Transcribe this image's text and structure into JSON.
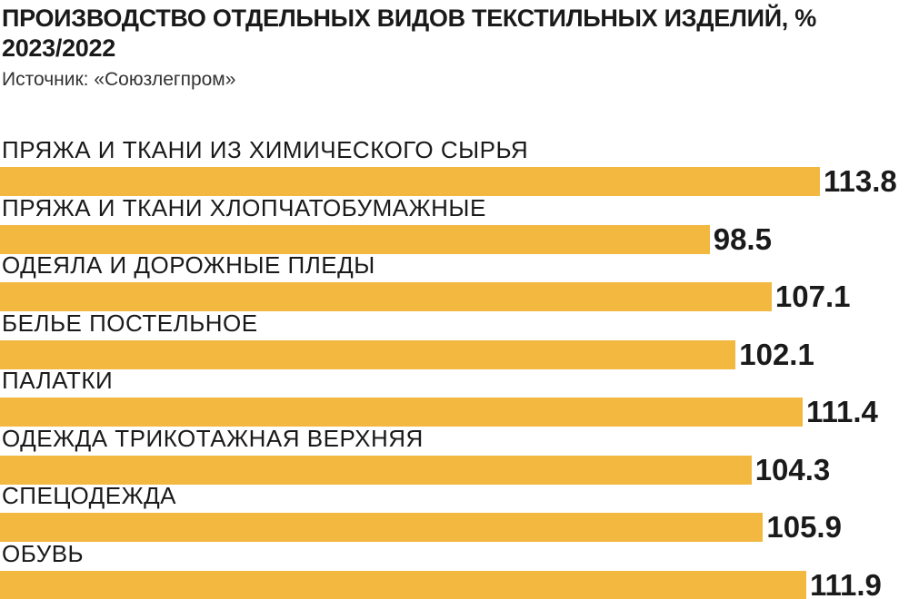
{
  "colors": {
    "bar": "#f2b840",
    "text": "#1a1a1a",
    "background": "#ffffff"
  },
  "chart_data": {
    "type": "bar",
    "orientation": "horizontal",
    "title": "ПРОИЗВОДСТВО ОТДЕЛЬНЫХ ВИДОВ ТЕКСТИЛЬНЫХ ИЗДЕЛИЙ, % 2023/2022",
    "source": "Источник: «Союзлегпром»",
    "xlabel": "",
    "ylabel": "",
    "grid": false,
    "categories": [
      "ПРЯЖА И ТКАНИ ИЗ ХИМИЧЕСКОГО СЫРЬЯ",
      "ПРЯЖА И ТКАНИ ХЛОПЧАТОБУМАЖНЫЕ",
      "ОДЕЯЛА И ДОРОЖНЫЕ ПЛЕДЫ",
      "БЕЛЬЕ ПОСТЕЛЬНОЕ",
      "ПАЛАТКИ",
      "ОДЕЖДА ТРИКОТАЖНАЯ ВЕРХНЯЯ",
      "СПЕЦОДЕЖДА",
      "ОБУВЬ"
    ],
    "values": [
      113.8,
      98.5,
      107.1,
      102.1,
      111.4,
      104.3,
      105.9,
      111.9
    ],
    "value_labels": [
      "113.8",
      "98.5",
      "107.1",
      "102.1",
      "111.4",
      "104.3",
      "105.9",
      "111.9"
    ]
  }
}
